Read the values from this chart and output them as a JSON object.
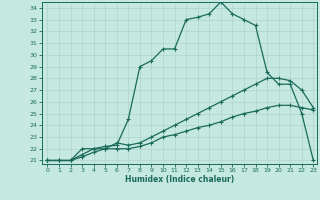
{
  "title": "",
  "xlabel": "Humidex (Indice chaleur)",
  "xlim": [
    -0.5,
    23.3
  ],
  "ylim": [
    20.7,
    34.5
  ],
  "xticks": [
    0,
    1,
    2,
    3,
    4,
    5,
    6,
    7,
    8,
    9,
    10,
    11,
    12,
    13,
    14,
    15,
    16,
    17,
    18,
    19,
    20,
    21,
    22,
    23
  ],
  "yticks": [
    21,
    22,
    23,
    24,
    25,
    26,
    27,
    28,
    29,
    30,
    31,
    32,
    33,
    34
  ],
  "bg_color": "#c5e8e0",
  "line_color": "#1a6b5a",
  "grid_color": "#b0d4c8",
  "line1_x": [
    0,
    1,
    2,
    3,
    4,
    5,
    6,
    7,
    8,
    9,
    10,
    11,
    12,
    13,
    14,
    15,
    16,
    17,
    18,
    19,
    20,
    21,
    22,
    23
  ],
  "line1_y": [
    21,
    21,
    21,
    22,
    22,
    22.2,
    22.3,
    24.5,
    29,
    29.5,
    30.5,
    30.5,
    33,
    33.2,
    33.5,
    34.5,
    33.5,
    33,
    32.5,
    28.5,
    27.5,
    27.5,
    25,
    21
  ],
  "line2_x": [
    0,
    1,
    2,
    3,
    4,
    5,
    6,
    7,
    8,
    9,
    10,
    11,
    12,
    13,
    14,
    15,
    16,
    17,
    18,
    19,
    20,
    21,
    22,
    23
  ],
  "line2_y": [
    21,
    21,
    21,
    21.5,
    22,
    22,
    22.5,
    22.3,
    22.5,
    23,
    23.5,
    24,
    24.5,
    25,
    25.5,
    26,
    26.5,
    27,
    27.5,
    28,
    28,
    27.8,
    27,
    25.5
  ],
  "line3_x": [
    0,
    1,
    2,
    3,
    4,
    5,
    6,
    7,
    8,
    9,
    10,
    11,
    12,
    13,
    14,
    15,
    16,
    17,
    18,
    19,
    20,
    21,
    22,
    23
  ],
  "line3_y": [
    21,
    21,
    21,
    21.3,
    21.7,
    22,
    22,
    22,
    22.2,
    22.5,
    23,
    23.2,
    23.5,
    23.8,
    24,
    24.3,
    24.7,
    25,
    25.2,
    25.5,
    25.7,
    25.7,
    25.5,
    25.3
  ],
  "marker": "+",
  "markersize": 3,
  "linewidth": 0.9
}
